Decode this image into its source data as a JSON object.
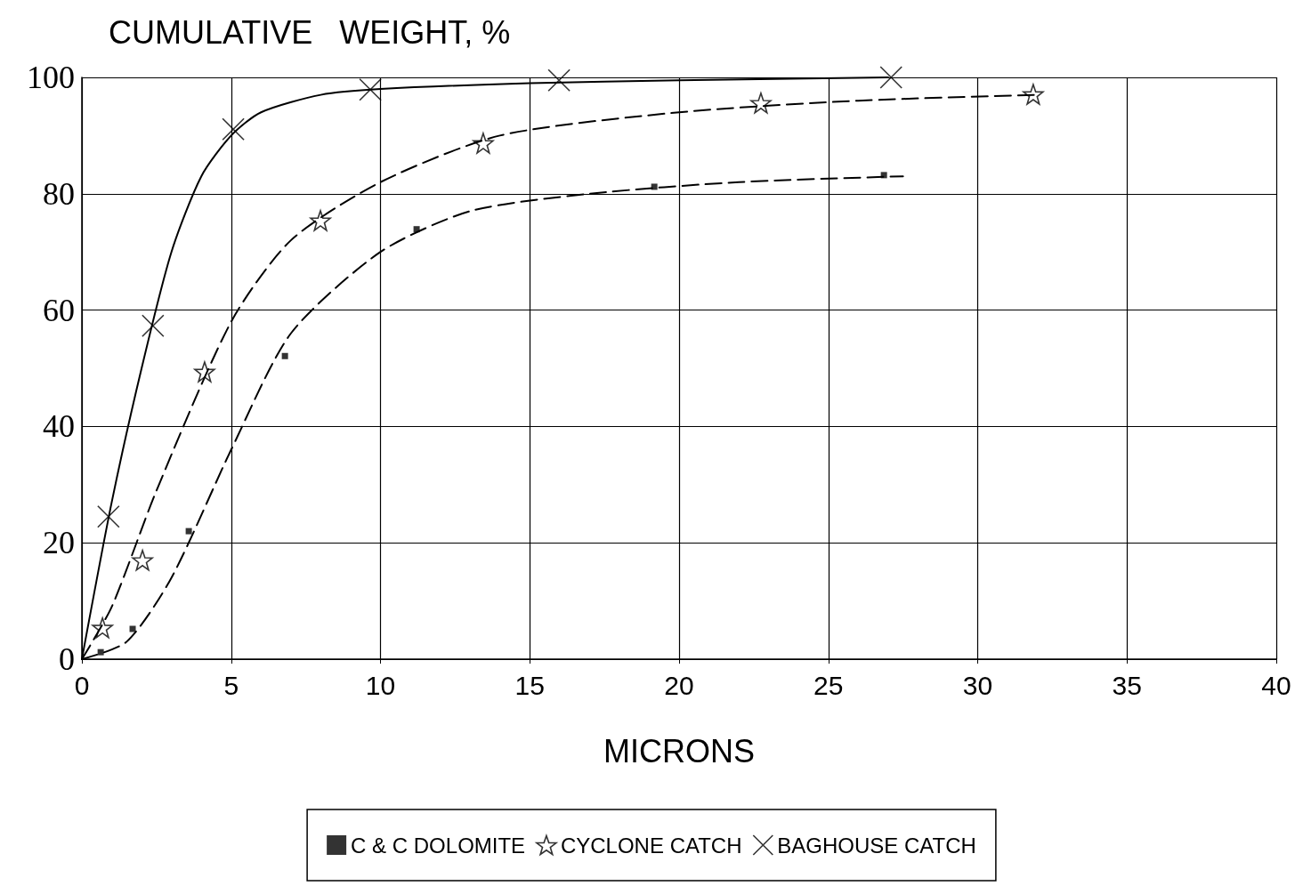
{
  "chart_data": {
    "type": "scatter",
    "xlabel": "MICRONS",
    "ylabel": "CUMULATIVE   WEIGHT, %",
    "xlim": [
      0,
      40
    ],
    "xticks": [
      0,
      5,
      10,
      15,
      20,
      25,
      30,
      35,
      40
    ],
    "ylim": [
      0,
      100
    ],
    "yticks": [
      0,
      20,
      40,
      60,
      80,
      100
    ],
    "grid": true,
    "legend": "bottom",
    "series": [
      {
        "name": "C & C DOLOMITE",
        "color": "#000000",
        "marker": "square",
        "x": [
          0.63,
          1.7,
          3.58,
          6.8,
          11.21,
          19.17,
          26.86
        ],
        "values": [
          1.2,
          5.2,
          22.0,
          52.1,
          73.9,
          81.2,
          83.2
        ]
      },
      {
        "name": "CYCLONE CATCH",
        "color": "#000000",
        "marker": "star",
        "x": [
          0.69,
          2.03,
          4.11,
          7.99,
          13.44,
          22.74,
          31.86
        ],
        "values": [
          5.4,
          17.0,
          49.4,
          75.4,
          88.7,
          95.6,
          97.1
        ]
      },
      {
        "name": "BAGHOUSE CATCH",
        "color": "#000000",
        "marker": "cross",
        "x": [
          0.89,
          2.38,
          5.07,
          9.66,
          15.98,
          27.1
        ],
        "values": [
          24.5,
          57.3,
          91.1,
          97.9,
          99.5,
          100
        ]
      },
      {
        "type": "line",
        "color": "#000000",
        "marker": "none",
        "line_style": "dashed",
        "x": [
          0,
          1.5,
          3,
          5,
          7,
          10,
          13,
          17,
          22,
          27.5
        ],
        "values": [
          0,
          3,
          14,
          36,
          56,
          70,
          77,
          80,
          82,
          83
        ]
      },
      {
        "type": "line",
        "color": "#000000",
        "marker": "none",
        "line_style": "dashed",
        "x": [
          0,
          1,
          2.5,
          5,
          7,
          10,
          14,
          20,
          26,
          32
        ],
        "values": [
          0,
          9,
          29,
          58,
          72,
          82,
          90,
          94,
          96,
          97
        ]
      },
      {
        "type": "line",
        "color": "#000000",
        "marker": "none",
        "line_style": "solid",
        "x": [
          0,
          1,
          2,
          3,
          4,
          5,
          6,
          8,
          10,
          15,
          20,
          27
        ],
        "values": [
          0,
          27,
          50,
          70,
          83,
          90,
          94,
          97,
          98,
          99,
          99.5,
          100
        ]
      }
    ]
  }
}
